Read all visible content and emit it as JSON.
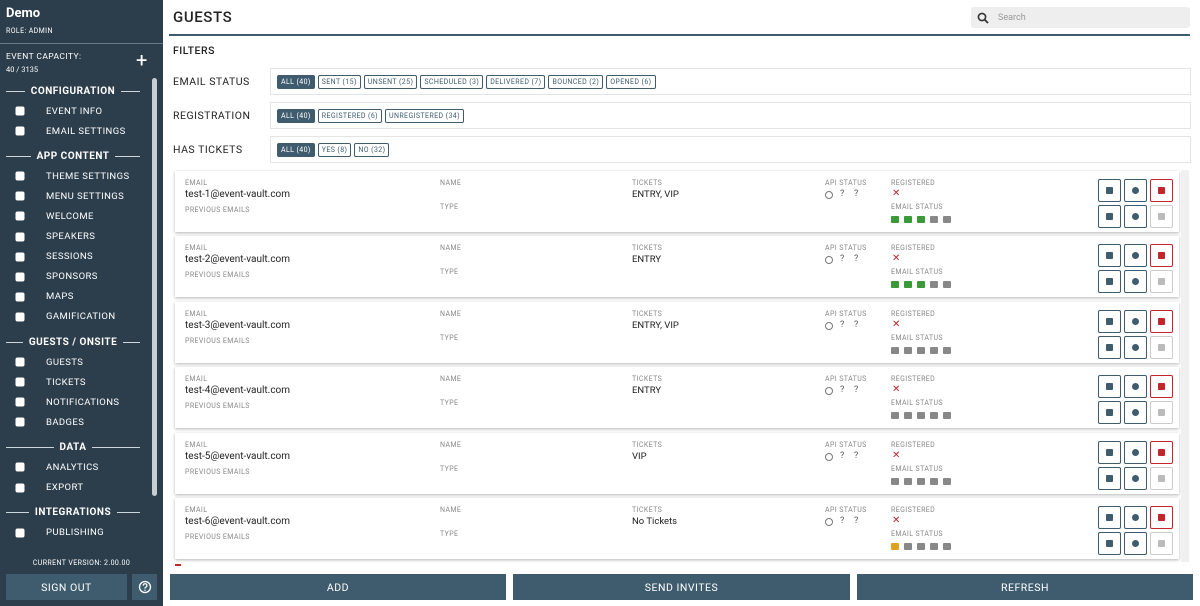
{
  "sidebar": {
    "app_name": "Demo",
    "role": "ROLE: ADMIN",
    "capacity_label": "EVENT CAPACITY:",
    "capacity_value": "40 / 3135",
    "sections": [
      {
        "title": "CONFIGURATION",
        "items": [
          "EVENT INFO",
          "EMAIL SETTINGS"
        ]
      },
      {
        "title": "APP CONTENT",
        "items": [
          "THEME SETTINGS",
          "MENU SETTINGS",
          "WELCOME",
          "SPEAKERS",
          "SESSIONS",
          "SPONSORS",
          "MAPS",
          "GAMIFICATION"
        ]
      },
      {
        "title": "GUESTS / ONSITE",
        "items": [
          "GUESTS",
          "TICKETS",
          "NOTIFICATIONS",
          "BADGES"
        ]
      },
      {
        "title": "DATA",
        "items": [
          "ANALYTICS",
          "EXPORT"
        ]
      },
      {
        "title": "INTEGRATIONS",
        "items": [
          "PUBLISHING"
        ]
      }
    ],
    "version": "CURRENT VERSION: 2.00.00",
    "sign_out": "SIGN OUT"
  },
  "header": {
    "title": "GUESTS",
    "search_placeholder": "Search"
  },
  "filters": {
    "title": "FILTERS",
    "rows": [
      {
        "label": "EMAIL STATUS",
        "chips": [
          "ALL (40)",
          "SENT (15)",
          "UNSENT (25)",
          "SCHEDULED (3)",
          "DELIVERED (7)",
          "BOUNCED (2)",
          "OPENED (6)"
        ]
      },
      {
        "label": "REGISTRATION",
        "chips": [
          "ALL (40)",
          "REGISTERED (6)",
          "UNREGISTERED (34)"
        ]
      },
      {
        "label": "HAS TICKETS",
        "chips": [
          "ALL (40)",
          "YES (8)",
          "NO (32)"
        ]
      }
    ]
  },
  "card_labels": {
    "email": "EMAIL",
    "previous_emails": "PREVIOUS EMAILS",
    "name": "NAME",
    "type": "TYPE",
    "tickets": "TICKETS",
    "api_status": "API STATUS",
    "api_unknown": "?",
    "registered": "REGISTERED",
    "email_status": "EMAIL STATUS"
  },
  "guests": [
    {
      "email": "test-1@event-vault.com",
      "tickets": "ENTRY, VIP",
      "icon_color": "#3a9a3a"
    },
    {
      "email": "test-2@event-vault.com",
      "tickets": "ENTRY",
      "icon_color": "#3a9a3a"
    },
    {
      "email": "test-3@event-vault.com",
      "tickets": "ENTRY, VIP",
      "icon_color": "#888888"
    },
    {
      "email": "test-4@event-vault.com",
      "tickets": "ENTRY",
      "icon_color": "#888888"
    },
    {
      "email": "test-5@event-vault.com",
      "tickets": "VIP",
      "icon_color": "#888888"
    },
    {
      "email": "test-6@event-vault.com",
      "tickets": "No Tickets",
      "icon_color": "#888888"
    }
  ],
  "actions": [
    "ADD",
    "SEND INVITES",
    "REFRESH"
  ]
}
